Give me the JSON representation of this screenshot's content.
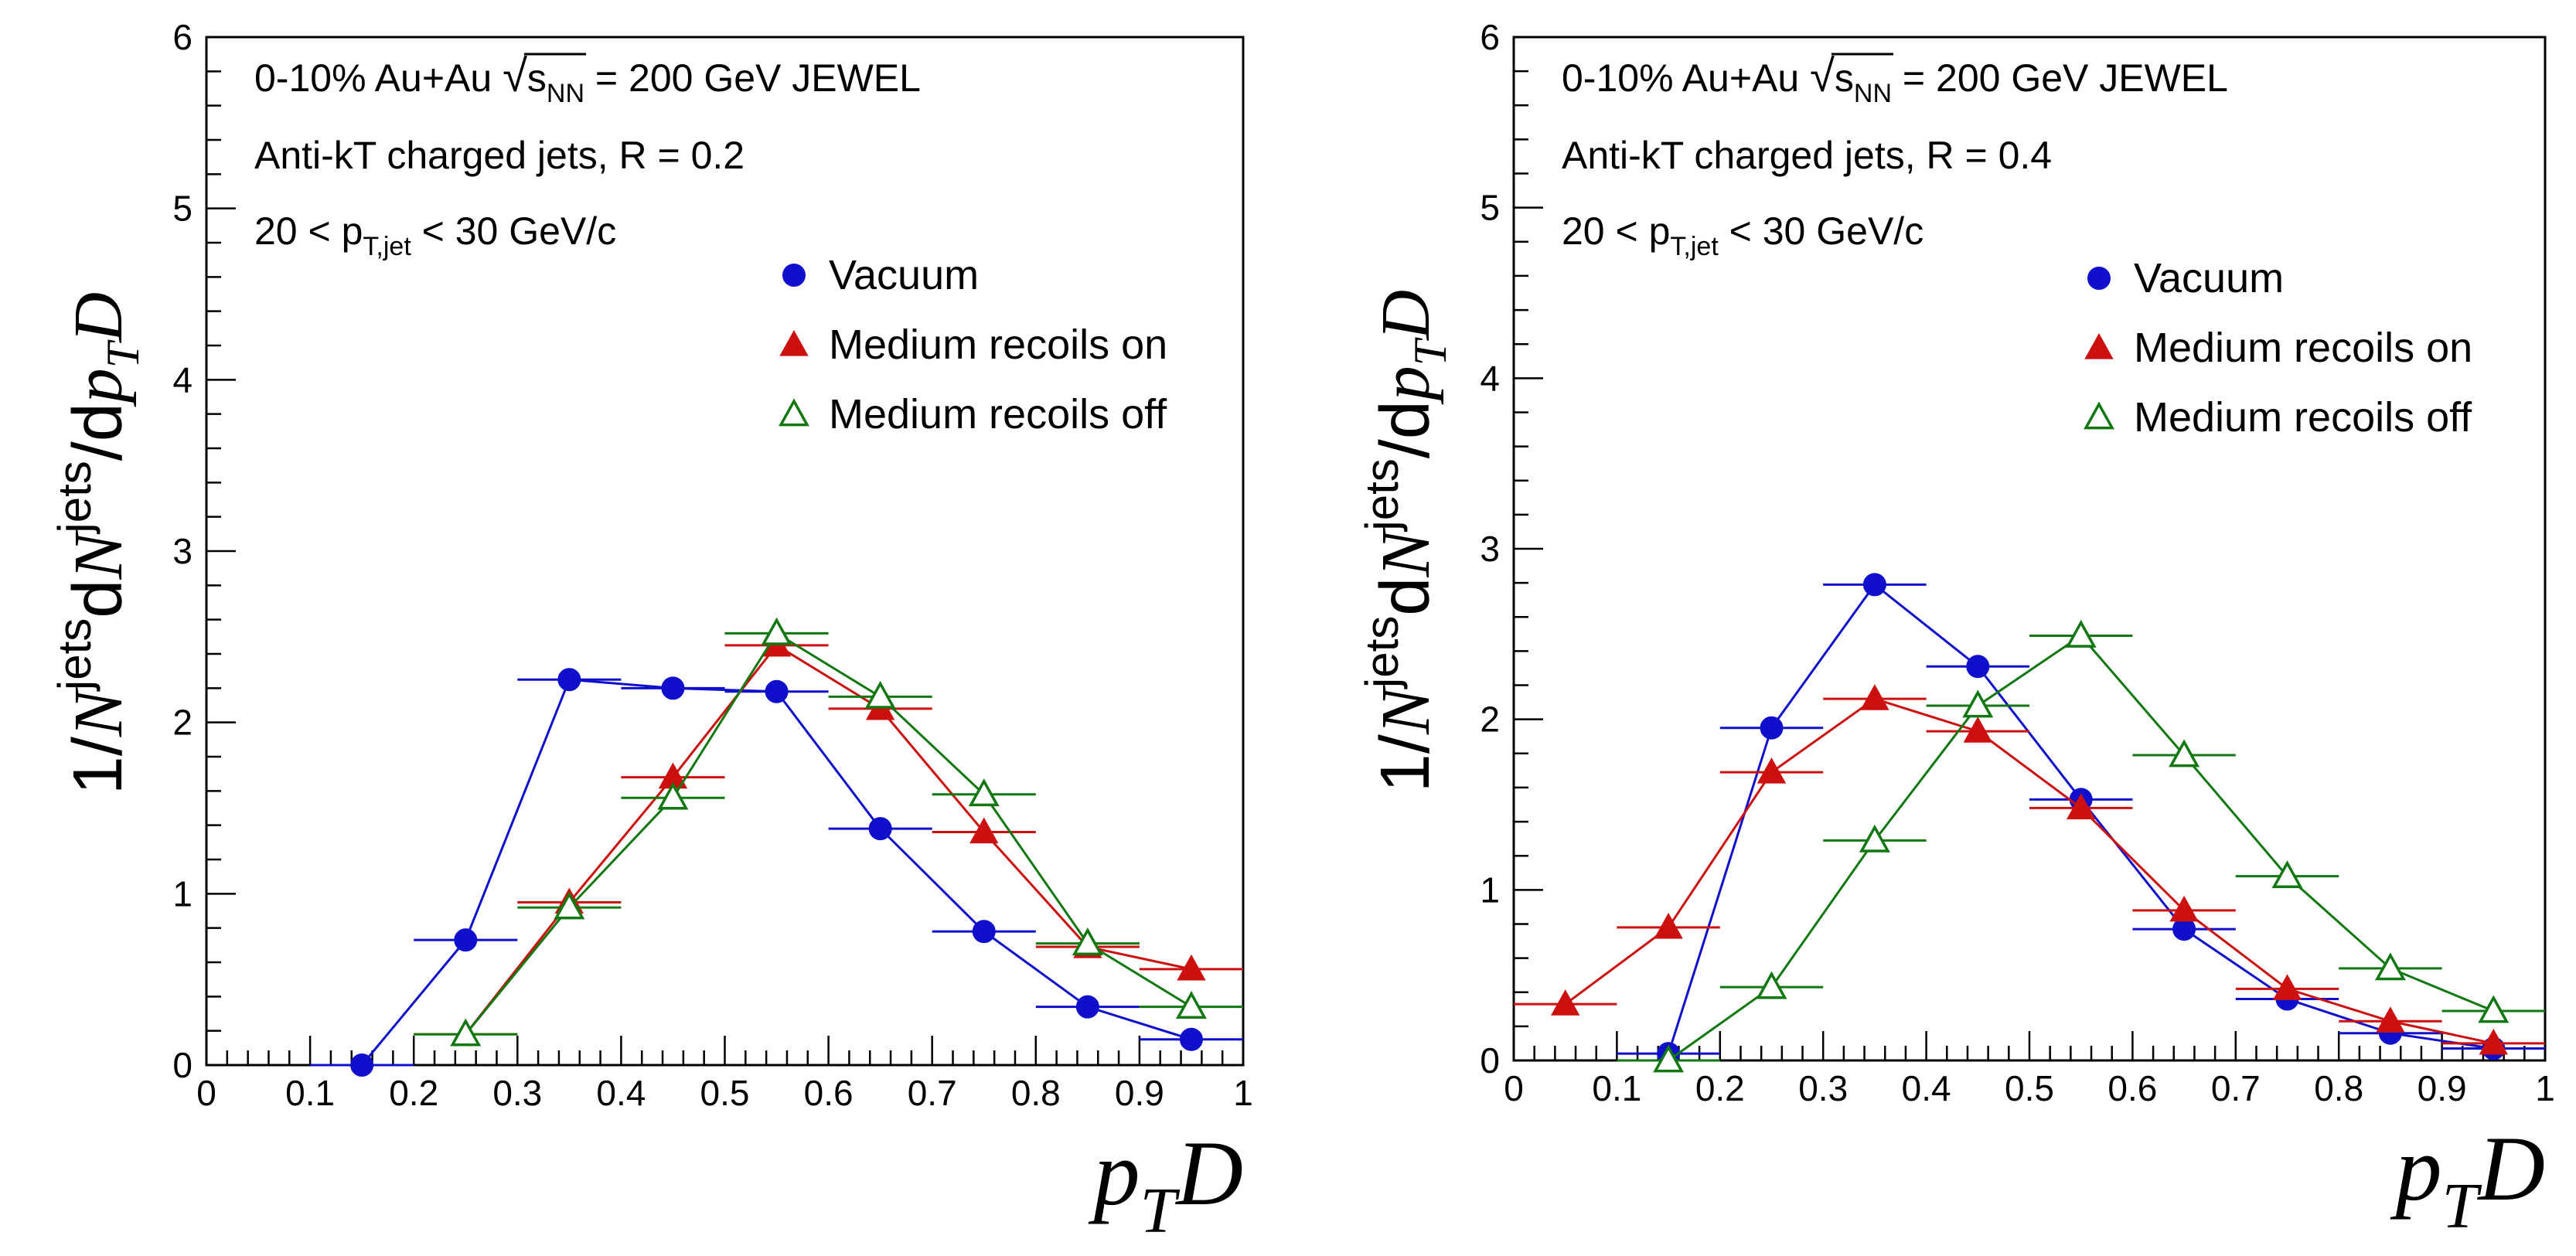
{
  "chart_data": [
    {
      "type": "line",
      "panel": "left",
      "annotations": {
        "line1_prefix": "0-10% Au+Au ",
        "line1_sqrt_sym": "√",
        "line1_s": "s",
        "line1_nn": "NN",
        "line1_suffix": " = 200 GeV  JEWEL",
        "line2": "Anti-kT charged jets, R = 0.2",
        "line3_prefix": "20 < p",
        "line3_sub": "T,jet",
        "line3_suffix": " < 30 GeV/c"
      },
      "ylabel": {
        "one_over": "1/",
        "N1": "N",
        "sup1": "jets",
        "dN": "d",
        "N2": "N",
        "sup2": "jets",
        "slash": "/d",
        "p": "p",
        "T": "T",
        "D": "D"
      },
      "xlabel": {
        "p": "p",
        "T": "T",
        "D": "D"
      },
      "xlim": [
        0,
        1
      ],
      "ylim": [
        0,
        6
      ],
      "x_ticks": [
        "0",
        "0.1",
        "0.2",
        "0.3",
        "0.4",
        "0.5",
        "0.6",
        "0.7",
        "0.8",
        "0.9",
        "1"
      ],
      "y_ticks": [
        "0",
        "1",
        "2",
        "3",
        "4",
        "5",
        "6"
      ],
      "x": [
        0.05,
        0.15,
        0.25,
        0.35,
        0.45,
        0.55,
        0.65,
        0.75,
        0.85,
        0.95
      ],
      "bin_half_width": 0.05,
      "series": [
        {
          "name": "Vacuum",
          "color": "#1010cc",
          "marker": "circle",
          "values": [
            null,
            0.0,
            0.73,
            2.25,
            2.2,
            2.18,
            1.38,
            0.78,
            0.34,
            0.15
          ]
        },
        {
          "name": "Medium recoils on",
          "color": "#cc1010",
          "marker": "triangle",
          "values": [
            null,
            null,
            0.18,
            0.95,
            1.68,
            2.45,
            2.08,
            1.36,
            0.69,
            0.56
          ]
        },
        {
          "name": "Medium recoils off",
          "color": "#117711",
          "marker": "triangle-open",
          "values": [
            null,
            null,
            0.18,
            0.92,
            1.56,
            2.52,
            2.15,
            1.58,
            0.71,
            0.34
          ]
        }
      ]
    },
    {
      "type": "line",
      "panel": "right",
      "annotations": {
        "line1_prefix": "0-10% Au+Au ",
        "line1_sqrt_sym": "√",
        "line1_s": "s",
        "line1_nn": "NN",
        "line1_suffix": " = 200 GeV  JEWEL",
        "line2": "Anti-kT charged jets, R = 0.4",
        "line3_prefix": "20 < p",
        "line3_sub": "T,jet",
        "line3_suffix": " < 30 GeV/c"
      },
      "ylabel": {
        "one_over": "1/",
        "N1": "N",
        "sup1": "jets",
        "dN": "d",
        "N2": "N",
        "sup2": "jets",
        "slash": "/d",
        "p": "p",
        "T": "T",
        "D": "D"
      },
      "xlabel": {
        "p": "p",
        "T": "T",
        "D": "D"
      },
      "xlim": [
        0,
        1
      ],
      "ylim": [
        0,
        6
      ],
      "x_ticks": [
        "0",
        "0.1",
        "0.2",
        "0.3",
        "0.4",
        "0.5",
        "0.6",
        "0.7",
        "0.8",
        "0.9",
        "1"
      ],
      "y_ticks": [
        "0",
        "1",
        "2",
        "3",
        "4",
        "5",
        "6"
      ],
      "x": [
        0.05,
        0.15,
        0.25,
        0.35,
        0.45,
        0.55,
        0.65,
        0.75,
        0.85,
        0.95
      ],
      "bin_half_width": 0.05,
      "series": [
        {
          "name": "Vacuum",
          "color": "#1010cc",
          "marker": "circle",
          "values": [
            null,
            0.04,
            1.95,
            2.79,
            2.31,
            1.53,
            0.77,
            0.36,
            0.16,
            0.07
          ]
        },
        {
          "name": "Medium recoils on",
          "color": "#cc1010",
          "marker": "triangle",
          "values": [
            0.33,
            0.78,
            1.69,
            2.12,
            1.93,
            1.48,
            0.88,
            0.42,
            0.23,
            0.1
          ]
        },
        {
          "name": "Medium recoils off",
          "color": "#117711",
          "marker": "triangle-open",
          "values": [
            null,
            0.0,
            0.43,
            1.29,
            2.08,
            2.49,
            1.79,
            1.08,
            0.54,
            0.29
          ]
        }
      ]
    }
  ]
}
